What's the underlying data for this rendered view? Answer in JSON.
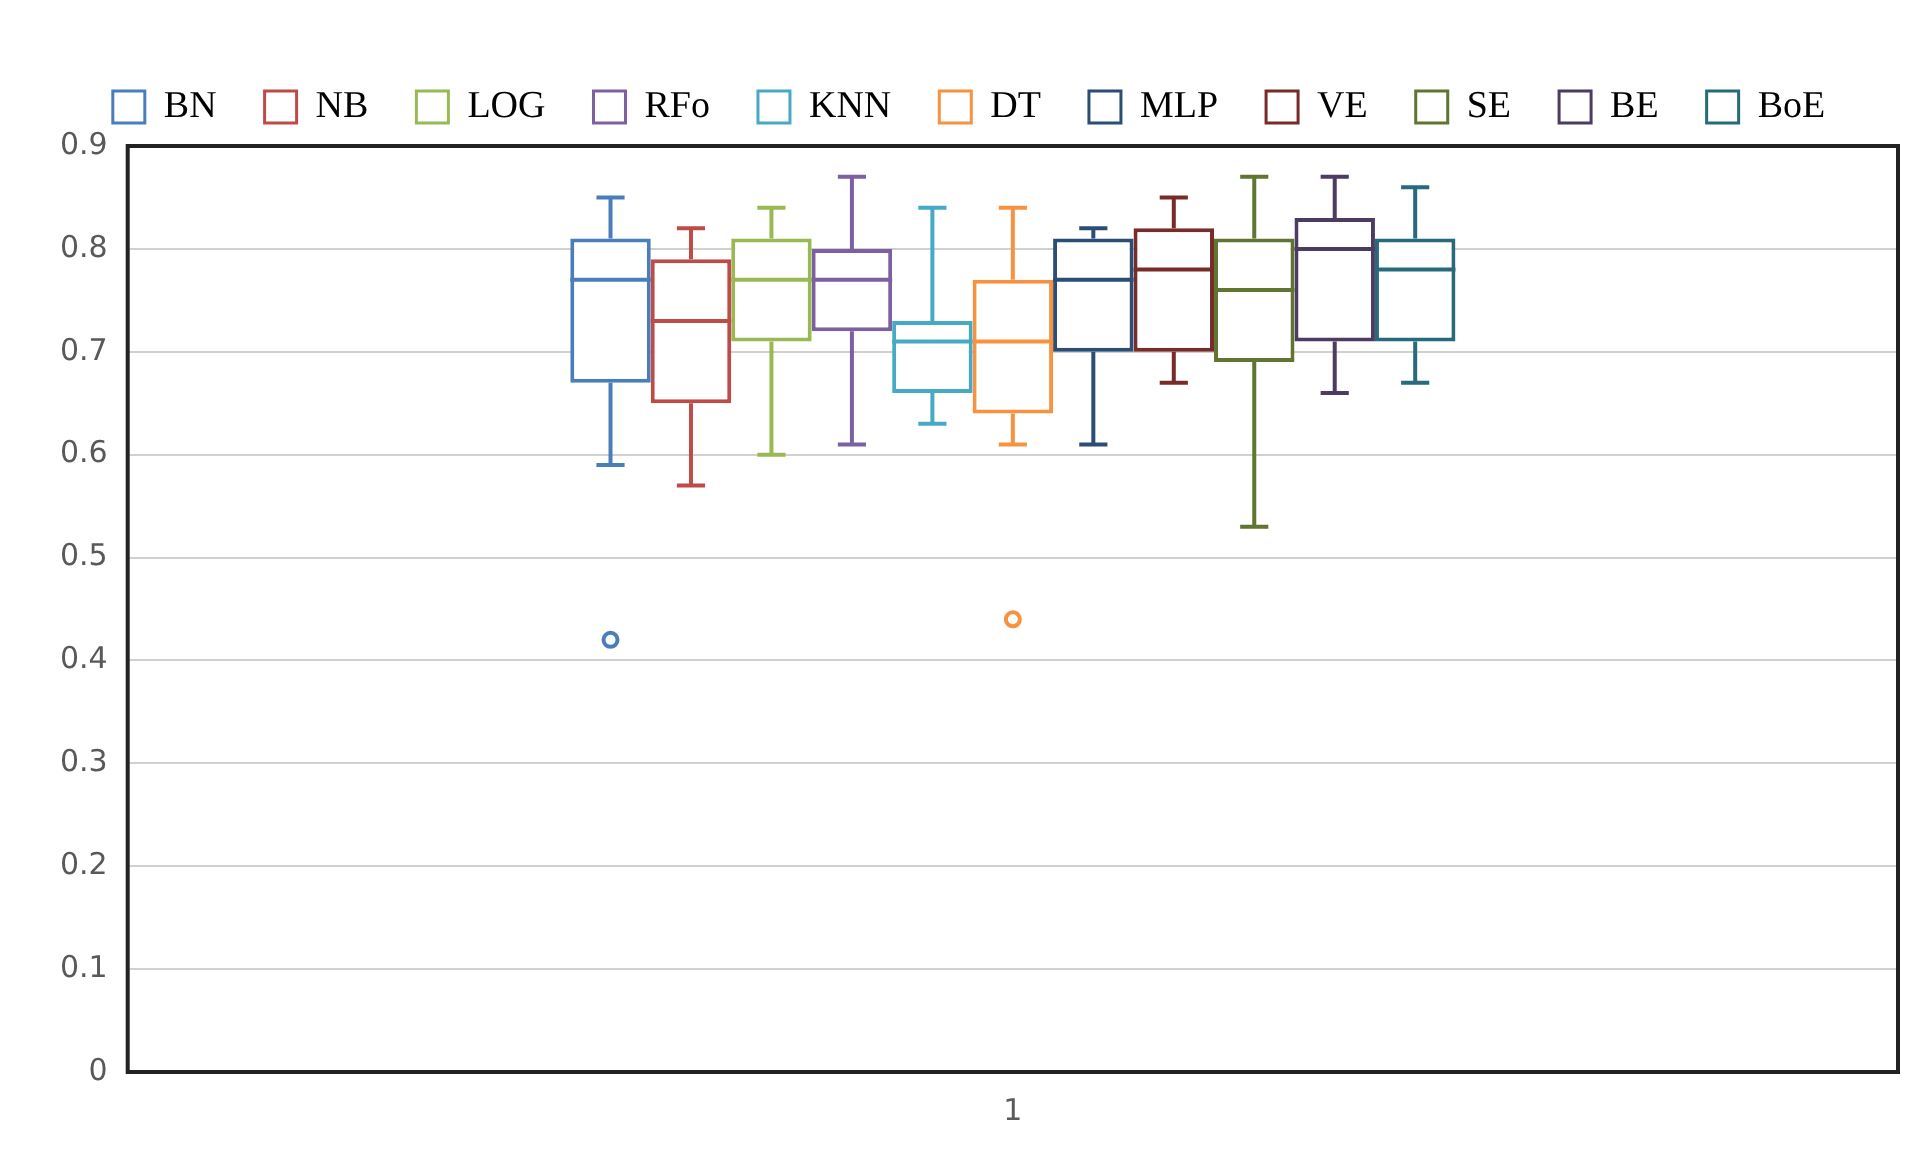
{
  "chart_data": {
    "type": "box",
    "categories": [
      "1"
    ],
    "ylim": [
      0,
      0.9
    ],
    "yticks": [
      0,
      0.1,
      0.2,
      0.3,
      0.4,
      0.5,
      0.6,
      0.7,
      0.8,
      0.9
    ],
    "grid": "y",
    "legend": "top",
    "series": [
      {
        "name": "BN",
        "color": "#4a7ebb",
        "boxes": [
          {
            "low": 0.59,
            "q1": 0.67,
            "median": 0.77,
            "q3": 0.81,
            "high": 0.85,
            "outliers": [
              0.42
            ]
          }
        ]
      },
      {
        "name": "NB",
        "color": "#be4b48",
        "boxes": [
          {
            "low": 0.57,
            "q1": 0.65,
            "median": 0.73,
            "q3": 0.79,
            "high": 0.82
          }
        ]
      },
      {
        "name": "LOG",
        "color": "#98b954",
        "boxes": [
          {
            "low": 0.6,
            "q1": 0.71,
            "median": 0.77,
            "q3": 0.81,
            "high": 0.84
          }
        ]
      },
      {
        "name": "RFo",
        "color": "#7d60a0",
        "boxes": [
          {
            "low": 0.61,
            "q1": 0.72,
            "median": 0.77,
            "q3": 0.8,
            "high": 0.87
          }
        ]
      },
      {
        "name": "KNN",
        "color": "#46aac5",
        "boxes": [
          {
            "low": 0.63,
            "q1": 0.66,
            "median": 0.71,
            "q3": 0.73,
            "high": 0.84
          }
        ]
      },
      {
        "name": "DT",
        "color": "#f69240",
        "boxes": [
          {
            "low": 0.61,
            "q1": 0.64,
            "median": 0.71,
            "q3": 0.77,
            "high": 0.84,
            "outliers": [
              0.44
            ]
          }
        ]
      },
      {
        "name": "MLP",
        "color": "#2c4d75",
        "boxes": [
          {
            "low": 0.61,
            "q1": 0.7,
            "median": 0.77,
            "q3": 0.81,
            "high": 0.82
          }
        ]
      },
      {
        "name": "VE",
        "color": "#772c2a",
        "boxes": [
          {
            "low": 0.67,
            "q1": 0.7,
            "median": 0.78,
            "q3": 0.82,
            "high": 0.85
          }
        ]
      },
      {
        "name": "SE",
        "color": "#5f7530",
        "boxes": [
          {
            "low": 0.53,
            "q1": 0.69,
            "median": 0.76,
            "q3": 0.81,
            "high": 0.87
          }
        ]
      },
      {
        "name": "BE",
        "color": "#4d3b62",
        "boxes": [
          {
            "low": 0.66,
            "q1": 0.71,
            "median": 0.8,
            "q3": 0.83,
            "high": 0.87
          }
        ]
      },
      {
        "name": "BoE",
        "color": "#276a7c",
        "boxes": [
          {
            "low": 0.67,
            "q1": 0.71,
            "median": 0.78,
            "q3": 0.81,
            "high": 0.86
          }
        ]
      }
    ]
  }
}
